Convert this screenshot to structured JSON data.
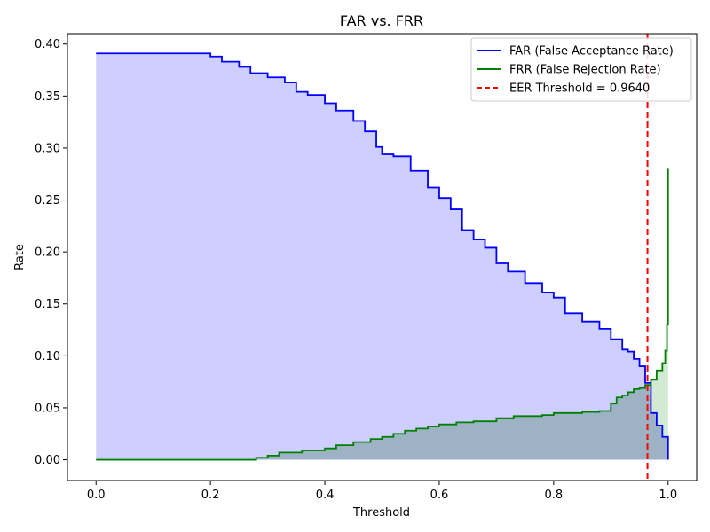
{
  "chart_data": {
    "type": "line",
    "title": "FAR vs. FRR",
    "xlabel": "Threshold",
    "ylabel": "Rate",
    "xlim": [
      -0.05,
      1.05
    ],
    "ylim": [
      -0.02,
      0.41
    ],
    "xticks": [
      0.0,
      0.2,
      0.4,
      0.6,
      0.8,
      1.0
    ],
    "xtick_labels": [
      "0.0",
      "0.2",
      "0.4",
      "0.6",
      "0.8",
      "1.0"
    ],
    "yticks": [
      0.0,
      0.05,
      0.1,
      0.15,
      0.2,
      0.25,
      0.3,
      0.35,
      0.4
    ],
    "ytick_labels": [
      "0.00",
      "0.05",
      "0.10",
      "0.15",
      "0.20",
      "0.25",
      "0.30",
      "0.35",
      "0.40"
    ],
    "grid": false,
    "legend_position": "top-right",
    "eer_threshold": 0.964,
    "series": [
      {
        "name": "FAR (False Acceptance Rate)",
        "color": "#0000ff",
        "fill_color": "#ccccff",
        "x": [
          0.0,
          0.05,
          0.1,
          0.15,
          0.17,
          0.2,
          0.22,
          0.25,
          0.27,
          0.3,
          0.33,
          0.35,
          0.37,
          0.4,
          0.42,
          0.45,
          0.47,
          0.49,
          0.5,
          0.52,
          0.55,
          0.58,
          0.6,
          0.62,
          0.64,
          0.66,
          0.68,
          0.7,
          0.72,
          0.75,
          0.78,
          0.8,
          0.82,
          0.85,
          0.88,
          0.9,
          0.92,
          0.93,
          0.94,
          0.95,
          0.96,
          0.97,
          0.98,
          0.99,
          1.0
        ],
        "y": [
          0.391,
          0.391,
          0.391,
          0.391,
          0.391,
          0.388,
          0.383,
          0.378,
          0.372,
          0.368,
          0.363,
          0.354,
          0.351,
          0.343,
          0.336,
          0.326,
          0.316,
          0.301,
          0.294,
          0.292,
          0.278,
          0.262,
          0.252,
          0.241,
          0.221,
          0.212,
          0.204,
          0.189,
          0.181,
          0.17,
          0.161,
          0.156,
          0.141,
          0.133,
          0.126,
          0.116,
          0.106,
          0.104,
          0.097,
          0.09,
          0.074,
          0.045,
          0.033,
          0.022,
          0.0
        ]
      },
      {
        "name": "FRR (False Rejection Rate)",
        "color": "#008000",
        "fill_color": "#cce8cc",
        "x": [
          0.0,
          0.1,
          0.2,
          0.27,
          0.28,
          0.3,
          0.32,
          0.36,
          0.4,
          0.42,
          0.45,
          0.48,
          0.5,
          0.52,
          0.54,
          0.56,
          0.58,
          0.6,
          0.63,
          0.66,
          0.7,
          0.73,
          0.78,
          0.8,
          0.85,
          0.88,
          0.9,
          0.91,
          0.92,
          0.93,
          0.94,
          0.95,
          0.96,
          0.97,
          0.98,
          0.99,
          0.995,
          0.998,
          1.0
        ],
        "y": [
          0.0,
          0.0,
          0.0,
          0.0,
          0.002,
          0.004,
          0.007,
          0.009,
          0.011,
          0.014,
          0.017,
          0.02,
          0.022,
          0.025,
          0.028,
          0.03,
          0.032,
          0.034,
          0.036,
          0.037,
          0.04,
          0.042,
          0.043,
          0.045,
          0.046,
          0.047,
          0.054,
          0.06,
          0.062,
          0.065,
          0.068,
          0.069,
          0.072,
          0.077,
          0.086,
          0.093,
          0.105,
          0.13,
          0.28
        ]
      },
      {
        "name": "EER Threshold = 0.9640",
        "color": "#ff0000",
        "x": [
          0.964,
          0.964
        ],
        "y": [
          -0.02,
          0.41
        ]
      }
    ]
  }
}
